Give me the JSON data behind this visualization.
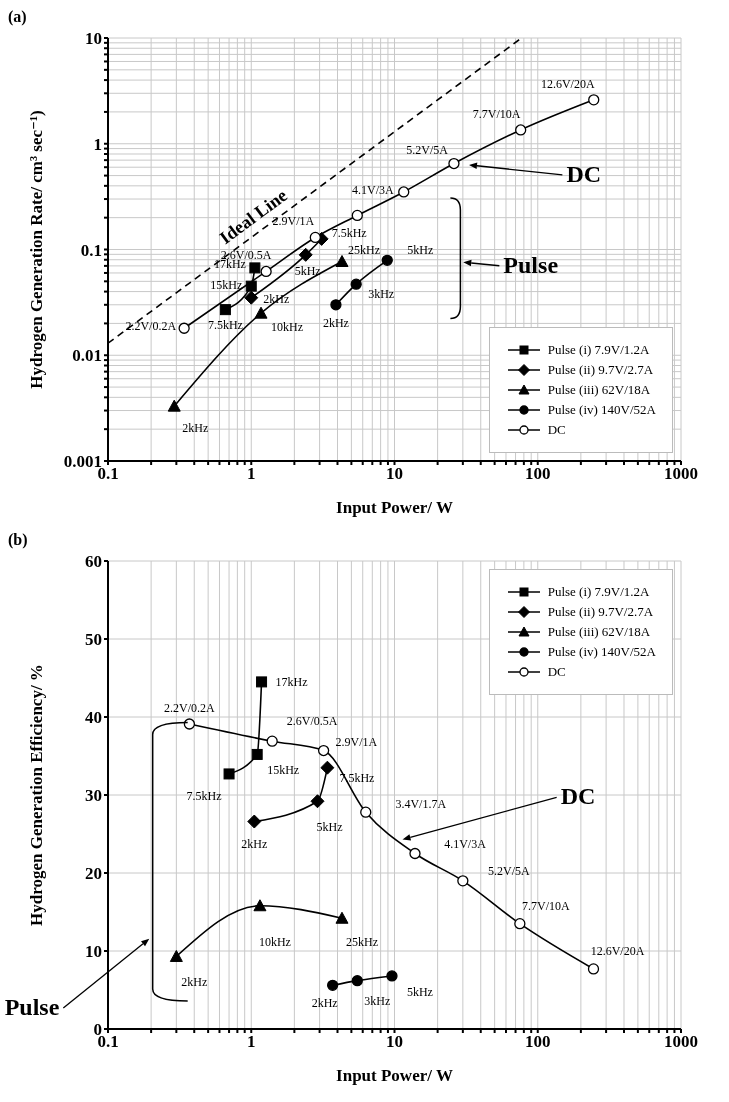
{
  "chart_data": [
    {
      "type": "line",
      "title": "(a)",
      "xlabel": "Input Power/ W",
      "ylabel": "Hydrogen Generation Rate/ cm³ sec⁻¹)",
      "log": "xy",
      "grid": true,
      "legend": "bottom right",
      "xlim": [
        0.1,
        1000
      ],
      "ylim": [
        0.001,
        10
      ],
      "xticks": [
        0.1,
        {
          "value": 0.2,
          "label": null
        },
        {
          "value": 0.3,
          "label": null
        },
        {
          "value": 0.4,
          "label": null
        },
        {
          "value": 0.5,
          "label": null
        },
        {
          "value": 0.6,
          "label": null
        },
        {
          "value": 0.7,
          "label": null
        },
        {
          "value": 0.8,
          "label": null
        },
        {
          "value": 0.9,
          "label": null
        },
        1,
        {
          "value": 2,
          "label": null
        },
        {
          "value": 3,
          "label": null
        },
        {
          "value": 4,
          "label": null
        },
        {
          "value": 5,
          "label": null
        },
        {
          "value": 6,
          "label": null
        },
        {
          "value": 7,
          "label": null
        },
        {
          "value": 8,
          "label": null
        },
        {
          "value": 9,
          "label": null
        },
        10,
        {
          "value": 20,
          "label": null
        },
        {
          "value": 30,
          "label": null
        },
        {
          "value": 40,
          "label": null
        },
        {
          "value": 50,
          "label": null
        },
        {
          "value": 60,
          "label": null
        },
        {
          "value": 70,
          "label": null
        },
        {
          "value": 80,
          "label": null
        },
        {
          "value": 90,
          "label": null
        },
        100,
        {
          "value": 200,
          "label": null
        },
        {
          "value": 300,
          "label": null
        },
        {
          "value": 400,
          "label": null
        },
        {
          "value": 500,
          "label": null
        },
        {
          "value": 600,
          "label": null
        },
        {
          "value": 700,
          "label": null
        },
        {
          "value": 800,
          "label": null
        },
        {
          "value": 900,
          "label": null
        },
        1000
      ],
      "yticks": [
        0.001,
        {
          "value": 0.002,
          "label": null
        },
        {
          "value": 0.003,
          "label": null
        },
        {
          "value": 0.004,
          "label": null
        },
        {
          "value": 0.005,
          "label": null
        },
        {
          "value": 0.006,
          "label": null
        },
        {
          "value": 0.007,
          "label": null
        },
        {
          "value": 0.008,
          "label": null
        },
        {
          "value": 0.009,
          "label": null
        },
        0.01,
        {
          "value": 0.02,
          "label": null
        },
        {
          "value": 0.03,
          "label": null
        },
        {
          "value": 0.04,
          "label": null
        },
        {
          "value": 0.05,
          "label": null
        },
        {
          "value": 0.06,
          "label": null
        },
        {
          "value": 0.07,
          "label": null
        },
        {
          "value": 0.08,
          "label": null
        },
        {
          "value": 0.09,
          "label": null
        },
        0.1,
        {
          "value": 0.2,
          "label": null
        },
        {
          "value": 0.3,
          "label": null
        },
        {
          "value": 0.4,
          "label": null
        },
        {
          "value": 0.5,
          "label": null
        },
        {
          "value": 0.6,
          "label": null
        },
        {
          "value": 0.7,
          "label": null
        },
        {
          "value": 0.8,
          "label": null
        },
        {
          "value": 0.9,
          "label": null
        },
        1,
        {
          "value": 2,
          "label": null
        },
        {
          "value": 3,
          "label": null
        },
        {
          "value": 4,
          "label": null
        },
        {
          "value": 5,
          "label": null
        },
        {
          "value": 6,
          "label": null
        },
        {
          "value": 7,
          "label": null
        },
        {
          "value": 8,
          "label": null
        },
        {
          "value": 9,
          "label": null
        },
        10
      ],
      "series": [
        {
          "name": "Pulse (i) 7.9V/1.2A",
          "color": "#000000",
          "marker": "square",
          "x": [
            0.66,
            1.0,
            1.06
          ],
          "values": [
            0.027,
            0.045,
            0.067
          ]
        },
        {
          "name": "Pulse (ii) 9.7V/2.7A",
          "color": "#000000",
          "marker": "diamond",
          "x": [
            1.0,
            2.4,
            3.1
          ],
          "values": [
            0.035,
            0.089,
            0.126
          ]
        },
        {
          "name": "Pulse (iii) 62V/18A",
          "color": "#000000",
          "marker": "triangle",
          "x": [
            0.29,
            1.17,
            4.3
          ],
          "values": [
            0.0033,
            0.025,
            0.077
          ]
        },
        {
          "name": "Pulse (iv) 140V/52A",
          "color": "#000000",
          "marker": "circle",
          "x": [
            3.9,
            5.4,
            8.9
          ],
          "values": [
            0.03,
            0.047,
            0.079
          ]
        },
        {
          "name": "DC",
          "color": "#000000",
          "colors": [
            "#ffffff",
            "#ffffff",
            "#ffffff",
            "#ffffff",
            "#ffffff",
            "#ffffff",
            "#ffffff",
            "#ffffff"
          ],
          "marker": "circle",
          "x": [
            0.34,
            1.27,
            2.8,
            5.5,
            11.6,
            26,
            76,
            246
          ],
          "values": [
            0.018,
            0.062,
            0.13,
            0.21,
            0.35,
            0.65,
            1.35,
            2.6
          ]
        },
        {
          "name": "Ideal Line",
          "color": "#000000",
          "marker": "none",
          "line_style": "dashed",
          "x": [
            0.1,
            77
          ],
          "values": [
            0.013,
            10
          ]
        }
      ],
      "annotations": [
        "DC",
        "Pulse",
        {
          "text": "7.5kHz",
          "x": 0.66,
          "y": 0.027
        },
        {
          "text": "15kHz",
          "x": 1.0,
          "y": 0.045
        },
        {
          "text": "17kHz",
          "x": 1.06,
          "y": 0.067
        },
        {
          "text": "2kHz",
          "x": 1.0,
          "y": 0.035
        },
        {
          "text": "5kHz",
          "x": 2.4,
          "y": 0.089
        },
        {
          "text": "7.5kHz",
          "x": 3.1,
          "y": 0.126
        },
        {
          "text": "2kHz",
          "x": 0.29,
          "y": 0.0033
        },
        {
          "text": "10kHz",
          "x": 1.17,
          "y": 0.025
        },
        {
          "text": "25kHz",
          "x": 4.3,
          "y": 0.077
        },
        {
          "text": "2kHz",
          "x": 3.9,
          "y": 0.03
        },
        {
          "text": "3kHz",
          "x": 5.4,
          "y": 0.047
        },
        {
          "text": "5kHz",
          "x": 8.9,
          "y": 0.079
        },
        {
          "text": "2.2V/0.2A",
          "x": 0.34,
          "y": 0.018
        },
        {
          "text": "2.6V/0.5A",
          "x": 1.27,
          "y": 0.062
        },
        {
          "text": "2.9V/1A",
          "x": 2.8,
          "y": 0.13
        },
        {
          "text": "4.1V/3A",
          "x": 11.6,
          "y": 0.35
        },
        {
          "text": "5.2V/5A",
          "x": 26,
          "y": 0.65
        },
        {
          "text": "7.7V/10A",
          "x": 76,
          "y": 1.35
        },
        {
          "text": "12.6V/20A",
          "x": 246,
          "y": 2.6
        }
      ]
    },
    {
      "type": "line",
      "title": "(b)",
      "xlabel": "Input Power/ W",
      "ylabel": "Hydrogen Generation Efficiency/ %",
      "log": "x",
      "grid": true,
      "legend": "top right",
      "xlim": [
        0.1,
        1000
      ],
      "ylim": [
        0,
        60
      ],
      "xticks": [
        0.1,
        {
          "value": 0.2,
          "label": null
        },
        {
          "value": 0.3,
          "label": null
        },
        {
          "value": 0.4,
          "label": null
        },
        {
          "value": 0.5,
          "label": null
        },
        {
          "value": 0.6,
          "label": null
        },
        {
          "value": 0.7,
          "label": null
        },
        {
          "value": 0.8,
          "label": null
        },
        {
          "value": 0.9,
          "label": null
        },
        1,
        {
          "value": 2,
          "label": null
        },
        {
          "value": 3,
          "label": null
        },
        {
          "value": 4,
          "label": null
        },
        {
          "value": 5,
          "label": null
        },
        {
          "value": 6,
          "label": null
        },
        {
          "value": 7,
          "label": null
        },
        {
          "value": 8,
          "label": null
        },
        {
          "value": 9,
          "label": null
        },
        10,
        {
          "value": 20,
          "label": null
        },
        {
          "value": 30,
          "label": null
        },
        {
          "value": 40,
          "label": null
        },
        {
          "value": 50,
          "label": null
        },
        {
          "value": 60,
          "label": null
        },
        {
          "value": 70,
          "label": null
        },
        {
          "value": 80,
          "label": null
        },
        {
          "value": 90,
          "label": null
        },
        100,
        {
          "value": 200,
          "label": null
        },
        {
          "value": 300,
          "label": null
        },
        {
          "value": 400,
          "label": null
        },
        {
          "value": 500,
          "label": null
        },
        {
          "value": 600,
          "label": null
        },
        {
          "value": 700,
          "label": null
        },
        {
          "value": 800,
          "label": null
        },
        {
          "value": 900,
          "label": null
        },
        1000
      ],
      "yticks": [
        0,
        10,
        20,
        30,
        40,
        50,
        60
      ],
      "series": [
        {
          "name": "Pulse (i) 7.9V/1.2A",
          "color": "#000000",
          "marker": "square",
          "x": [
            0.7,
            1.1,
            1.18
          ],
          "values": [
            32.7,
            35.2,
            44.5
          ]
        },
        {
          "name": "Pulse (ii) 9.7V/2.7A",
          "color": "#000000",
          "marker": "diamond",
          "x": [
            1.05,
            2.9,
            3.4
          ],
          "values": [
            26.6,
            29.2,
            33.5
          ]
        },
        {
          "name": "Pulse (iii) 62V/18A",
          "color": "#000000",
          "marker": "triangle",
          "x": [
            0.3,
            1.15,
            4.3
          ],
          "values": [
            9.3,
            15.8,
            14.2
          ]
        },
        {
          "name": "Pulse (iv) 140V/52A",
          "color": "#000000",
          "marker": "circle",
          "x": [
            3.7,
            5.5,
            9.6
          ],
          "values": [
            5.6,
            6.2,
            6.8
          ]
        },
        {
          "name": "DC",
          "color": "#000000",
          "colors": [
            "#ffffff",
            "#ffffff",
            "#ffffff",
            "#ffffff",
            "#ffffff",
            "#ffffff",
            "#ffffff",
            "#ffffff"
          ],
          "marker": "circle",
          "x": [
            0.37,
            1.4,
            3.2,
            6.3,
            13.9,
            30,
            75,
            245
          ],
          "values": [
            39.1,
            36.9,
            35.7,
            27.8,
            22.5,
            19.0,
            13.5,
            7.7
          ]
        }
      ],
      "annotations": [
        "DC",
        "Pulse",
        {
          "text": "7.5kHz",
          "x": 0.7,
          "y": 32.7
        },
        {
          "text": "15kHz",
          "x": 1.1,
          "y": 35.2
        },
        {
          "text": "17kHz",
          "x": 1.18,
          "y": 44.5
        },
        {
          "text": "2kHz",
          "x": 1.05,
          "y": 26.6
        },
        {
          "text": "5kHz",
          "x": 2.9,
          "y": 29.2
        },
        {
          "text": "7.5kHz",
          "x": 3.4,
          "y": 33.5
        },
        {
          "text": "2kHz",
          "x": 0.3,
          "y": 9.3
        },
        {
          "text": "10kHz",
          "x": 1.15,
          "y": 15.8
        },
        {
          "text": "25kHz",
          "x": 4.3,
          "y": 14.2
        },
        {
          "text": "2kHz",
          "x": 3.7,
          "y": 5.6
        },
        {
          "text": "3kHz",
          "x": 5.5,
          "y": 6.2
        },
        {
          "text": "5kHz",
          "x": 9.6,
          "y": 6.8
        },
        {
          "text": "2.2V/0.2A",
          "x": 0.37,
          "y": 39.1
        },
        {
          "text": "2.6V/0.5A",
          "x": 1.4,
          "y": 36.9
        },
        {
          "text": "2.9V/1A",
          "x": 3.2,
          "y": 35.7
        },
        {
          "text": "3.4V/1.7A",
          "x": 6.3,
          "y": 27.8
        },
        {
          "text": "4.1V/3A",
          "x": 13.9,
          "y": 22.5
        },
        {
          "text": "5.2V/5A",
          "x": 30,
          "y": 19.0
        },
        {
          "text": "7.7V/10A",
          "x": 75,
          "y": 13.5
        },
        {
          "text": "12.6V/20A",
          "x": 245,
          "y": 7.7
        }
      ]
    }
  ]
}
